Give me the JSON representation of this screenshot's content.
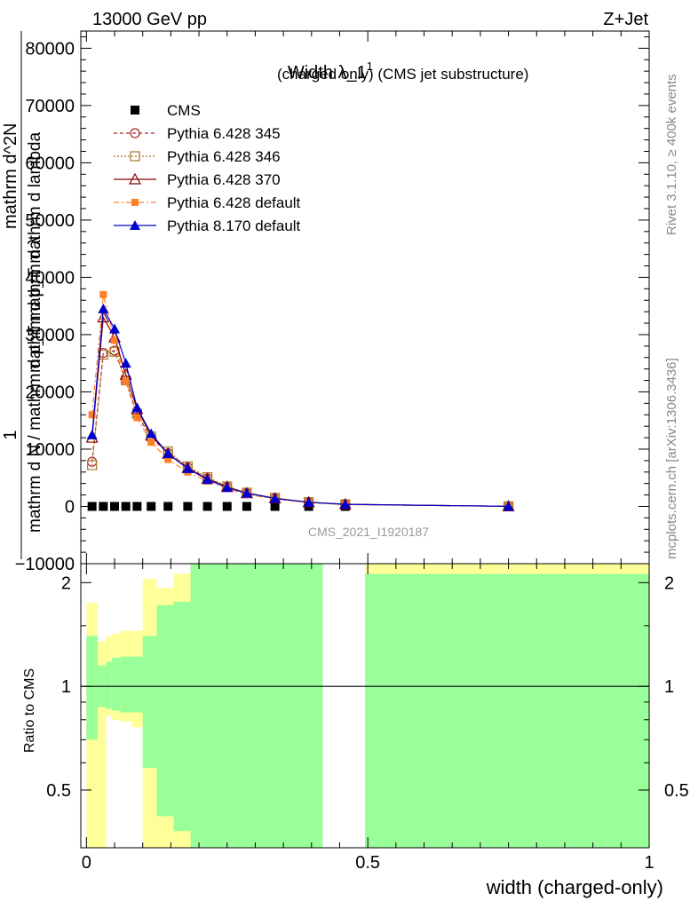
{
  "header": {
    "energy_label": "13000 GeV pp",
    "process_label": "Z+Jet"
  },
  "side_labels": {
    "rivet": "Rivet 3.1.10, ≥ 400k events",
    "mcplots": "mcplots.cern.ch [arXiv:1306.3436]"
  },
  "colors": {
    "cms": "#000000",
    "p345": "#b22222",
    "p346": "#a67c2a",
    "p370": "#8b0000",
    "p6def": "#ff7f27",
    "p8def": "#0000cc",
    "band_green": "#99ff99",
    "band_yellow": "#ffff99",
    "watermark": "#999999"
  },
  "chart_data": [
    {
      "type": "line",
      "title": "Width λ_1",
      "title_sup": "1",
      "subtitle": "(charged only) (CMS jet substructure)",
      "ylabel_lines": [
        "1",
        "mathrm d N / mathrm d p_T mathrm d λ",
        "mathrm d^2N",
        "mathrm d p_T mathrm d lambda"
      ],
      "watermark": "CMS_2021_I1920187",
      "ylim": [
        -10000,
        83000
      ],
      "xlim": [
        -0.01,
        1.0
      ],
      "yticks": [
        -10000,
        0,
        10000,
        20000,
        30000,
        40000,
        50000,
        60000,
        70000,
        80000
      ],
      "ytick_labels": [
        "−10000",
        "0",
        "10000",
        "20000",
        "30000",
        "40000",
        "50000",
        "60000",
        "70000",
        "80000"
      ],
      "legend_position": "top-left",
      "series": [
        {
          "name": "CMS",
          "marker": "square",
          "line": "none",
          "x": [
            0.01,
            0.03,
            0.05,
            0.07,
            0.09,
            0.115,
            0.145,
            0.18,
            0.215,
            0.25,
            0.285,
            0.335,
            0.395,
            0.46
          ],
          "y": [
            0,
            0,
            0,
            0,
            0,
            0,
            0,
            0,
            0,
            0,
            0,
            0,
            0,
            0
          ]
        },
        {
          "name": "Pythia 6.428 345",
          "marker": "open-circle",
          "dash": "4,3",
          "x": [
            0.01,
            0.03,
            0.05,
            0.07,
            0.09,
            0.115,
            0.145,
            0.18,
            0.215,
            0.25,
            0.285,
            0.335,
            0.395,
            0.46,
            0.75
          ],
          "y": [
            7800,
            26800,
            27200,
            22000,
            16000,
            12000,
            9300,
            6800,
            4900,
            3400,
            2300,
            1400,
            700,
            350,
            20
          ]
        },
        {
          "name": "Pythia 6.428 346",
          "marker": "open-square",
          "dash": "2,2",
          "x": [
            0.01,
            0.03,
            0.05,
            0.07,
            0.09,
            0.115,
            0.145,
            0.18,
            0.215,
            0.25,
            0.285,
            0.335,
            0.395,
            0.46,
            0.75
          ],
          "y": [
            7200,
            26500,
            27000,
            22000,
            16200,
            12200,
            9600,
            7000,
            5100,
            3500,
            2400,
            1500,
            750,
            380,
            20
          ]
        },
        {
          "name": "Pythia 6.428 370",
          "marker": "open-triangle",
          "dash": "",
          "x": [
            0.01,
            0.03,
            0.05,
            0.07,
            0.09,
            0.115,
            0.145,
            0.18,
            0.215,
            0.25,
            0.285,
            0.335,
            0.395,
            0.46,
            0.75
          ],
          "y": [
            12000,
            33000,
            29500,
            23000,
            17000,
            12400,
            9200,
            6700,
            4800,
            3400,
            2300,
            1400,
            720,
            360,
            20
          ]
        },
        {
          "name": "Pythia 6.428 default",
          "marker": "filled-square-small",
          "dash": "6,3,2,3",
          "x": [
            0.01,
            0.03,
            0.05,
            0.07,
            0.09,
            0.115,
            0.145,
            0.18,
            0.215,
            0.25,
            0.285,
            0.335,
            0.395,
            0.46,
            0.75
          ],
          "y": [
            16000,
            37000,
            29000,
            21800,
            15500,
            11200,
            8200,
            6000,
            4400,
            3100,
            2100,
            1300,
            650,
            320,
            20
          ]
        },
        {
          "name": "Pythia 8.170 default",
          "marker": "filled-triangle",
          "dash": "",
          "x": [
            0.01,
            0.03,
            0.05,
            0.07,
            0.09,
            0.115,
            0.145,
            0.18,
            0.215,
            0.25,
            0.285,
            0.335,
            0.395,
            0.46,
            0.75
          ],
          "y": [
            12500,
            34500,
            31000,
            25000,
            17200,
            12700,
            9200,
            6600,
            4700,
            3300,
            2300,
            1400,
            720,
            360,
            20
          ]
        }
      ]
    },
    {
      "type": "area",
      "ylabel": "Ratio to CMS",
      "xlabel": "width (charged-only)",
      "ylim": [
        0.34,
        2.27
      ],
      "xlim": [
        -0.01,
        1.0
      ],
      "yticks": [
        0.5,
        1,
        2
      ],
      "ytick_labels": [
        "0.5",
        "1",
        "2"
      ],
      "xticks": [
        0,
        0.5,
        1
      ],
      "xtick_labels": [
        "0",
        "0.5",
        "1"
      ],
      "reference_line": 1,
      "bands": [
        {
          "x0": 0.0,
          "x1": 0.02,
          "green": [
            0.7,
            1.4
          ],
          "yellow": [
            0.34,
            1.75
          ]
        },
        {
          "x0": 0.02,
          "x1": 0.035,
          "green": [
            0.87,
            1.15
          ],
          "yellow": [
            0.34,
            1.35
          ]
        },
        {
          "x0": 0.035,
          "x1": 0.045,
          "green": [
            0.86,
            1.18
          ],
          "yellow": [
            0.82,
            1.4
          ]
        },
        {
          "x0": 0.045,
          "x1": 0.06,
          "green": [
            0.85,
            1.21
          ],
          "yellow": [
            0.8,
            1.42
          ]
        },
        {
          "x0": 0.06,
          "x1": 0.08,
          "green": [
            0.84,
            1.22
          ],
          "yellow": [
            0.79,
            1.45
          ]
        },
        {
          "x0": 0.08,
          "x1": 0.1,
          "green": [
            0.84,
            1.22
          ],
          "yellow": [
            0.76,
            1.45
          ]
        },
        {
          "x0": 0.1,
          "x1": 0.125,
          "green": [
            0.58,
            1.4
          ],
          "yellow": [
            0.34,
            2.05
          ]
        },
        {
          "x0": 0.125,
          "x1": 0.155,
          "green": [
            0.42,
            1.72
          ],
          "yellow": [
            0.34,
            1.93
          ]
        },
        {
          "x0": 0.155,
          "x1": 0.185,
          "green": [
            0.38,
            1.76
          ],
          "yellow": [
            0.34,
            2.12
          ]
        },
        {
          "x0": 0.185,
          "x1": 0.42,
          "green": [
            0.34,
            2.27
          ],
          "yellow": [
            0.34,
            2.27
          ]
        },
        {
          "x0": 0.495,
          "x1": 1.0,
          "green": [
            0.34,
            2.12
          ],
          "yellow": [
            0.34,
            2.27
          ]
        }
      ]
    }
  ]
}
